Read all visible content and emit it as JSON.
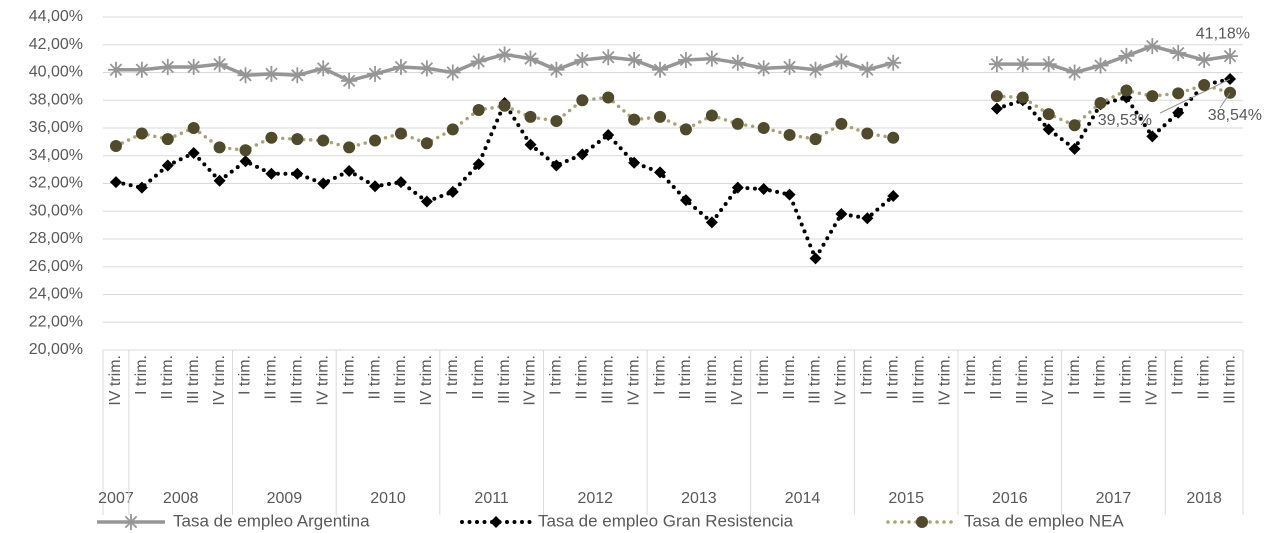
{
  "chart_data": {
    "type": "line",
    "categories": [
      "IV trim.",
      "I trim.",
      "II trim.",
      "III trim.",
      "IV trim.",
      "I trim.",
      "II trim.",
      "III trim.",
      "IV trim.",
      "I trim.",
      "II trim.",
      "III trim.",
      "IV trim.",
      "I trim.",
      "II trim.",
      "III trim.",
      "IV trim.",
      "I trim.",
      "II trim.",
      "III trim.",
      "IV trim.",
      "I trim.",
      "II trim.",
      "III trim.",
      "IV trim.",
      "I trim.",
      "II trim.",
      "III trim.",
      "IV trim.",
      "I trim.",
      "II trim.",
      "III trim.",
      "IV trim.",
      "I trim.",
      "II trim.",
      "III trim.",
      "IV trim.",
      "I trim.",
      "II trim.",
      "III trim.",
      "IV trim.",
      "I trim.",
      "II trim.",
      "III trim."
    ],
    "years": [
      "2007",
      "2008",
      "2009",
      "2010",
      "2011",
      "2012",
      "2013",
      "2014",
      "2015",
      "2016",
      "2017",
      "2018"
    ],
    "ylim": [
      20,
      44
    ],
    "yticks": [
      {
        "value": 20,
        "label": "20,00%"
      },
      {
        "value": 22,
        "label": "22,00%"
      },
      {
        "value": 24,
        "label": "24,00%"
      },
      {
        "value": 26,
        "label": "26,00%"
      },
      {
        "value": 28,
        "label": "28,00%"
      },
      {
        "value": 30,
        "label": "30,00%"
      },
      {
        "value": 32,
        "label": "32,00%"
      },
      {
        "value": 34,
        "label": "34,00%"
      },
      {
        "value": 36,
        "label": "36,00%"
      },
      {
        "value": 38,
        "label": "38,00%"
      },
      {
        "value": 40,
        "label": "40,00%"
      },
      {
        "value": 42,
        "label": "42,00%"
      },
      {
        "value": 44,
        "label": "44,00%"
      }
    ],
    "grid": true,
    "series": [
      {
        "name": "Tasa de empleo Argentina",
        "color": "#969696",
        "marker": "star",
        "values": [
          40.2,
          40.2,
          40.4,
          40.4,
          40.6,
          39.8,
          39.9,
          39.8,
          40.3,
          39.4,
          39.9,
          40.4,
          40.3,
          40.0,
          40.8,
          41.3,
          41.0,
          40.2,
          40.9,
          41.1,
          40.9,
          40.2,
          40.9,
          41.0,
          40.7,
          40.3,
          40.4,
          40.2,
          40.8,
          40.2,
          40.7,
          null,
          null,
          null,
          40.6,
          40.6,
          40.6,
          40.0,
          40.5,
          41.2,
          41.9,
          41.4,
          40.9,
          41.18
        ],
        "value_labels": {
          "43": "41,18%"
        }
      },
      {
        "name": "Tasa de empleo Gran Resistencia",
        "color": "#000000",
        "marker": "diamond",
        "values": [
          32.1,
          31.7,
          33.3,
          34.2,
          32.2,
          33.6,
          32.7,
          32.7,
          32.0,
          32.9,
          31.8,
          32.1,
          30.7,
          31.4,
          33.4,
          37.8,
          34.8,
          33.3,
          34.1,
          35.5,
          33.5,
          32.8,
          30.8,
          29.2,
          31.7,
          31.6,
          31.2,
          26.6,
          29.8,
          29.5,
          31.1,
          null,
          null,
          null,
          37.4,
          38.0,
          35.9,
          34.5,
          37.7,
          38.2,
          35.4,
          37.1,
          39.1,
          39.53
        ],
        "value_labels": {
          "43": "39,53%"
        }
      },
      {
        "name": "Tasa de empleo NEA",
        "color": "#a8a374",
        "marker": "circle",
        "values": [
          34.7,
          35.6,
          35.2,
          36.0,
          34.6,
          34.4,
          35.3,
          35.2,
          35.1,
          34.6,
          35.1,
          35.6,
          34.9,
          35.9,
          37.3,
          37.6,
          36.8,
          36.5,
          38.0,
          38.2,
          36.6,
          36.8,
          35.9,
          36.9,
          36.3,
          36.0,
          35.5,
          35.2,
          36.3,
          35.6,
          35.3,
          null,
          null,
          null,
          38.3,
          38.2,
          37.0,
          36.2,
          37.8,
          38.7,
          38.3,
          38.5,
          39.1,
          38.54
        ],
        "value_labels": {
          "43": "38,54%"
        }
      }
    ]
  }
}
